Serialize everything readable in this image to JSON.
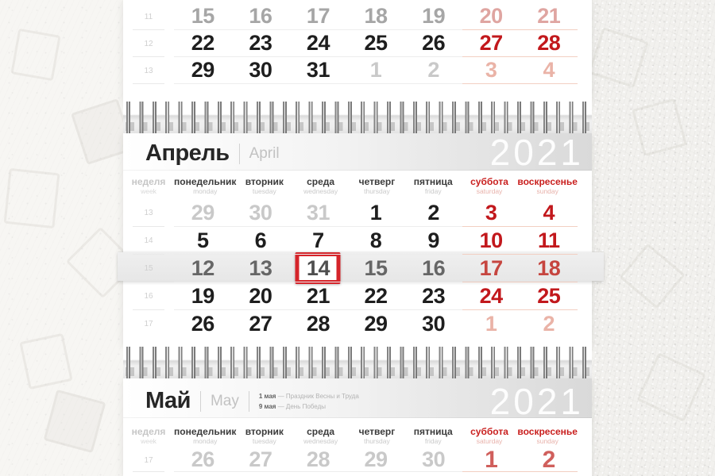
{
  "weekdays": [
    {
      "ru": "неделя",
      "en": "week",
      "type": "week"
    },
    {
      "ru": "понедельник",
      "en": "monday",
      "type": "day"
    },
    {
      "ru": "вторник",
      "en": "tuesday",
      "type": "day"
    },
    {
      "ru": "среда",
      "en": "wednesday",
      "type": "day"
    },
    {
      "ru": "четверг",
      "en": "thursday",
      "type": "day"
    },
    {
      "ru": "пятница",
      "en": "friday",
      "type": "day"
    },
    {
      "ru": "суббота",
      "en": "saturday",
      "type": "weekend"
    },
    {
      "ru": "воскресенье",
      "en": "sunday",
      "type": "weekend"
    }
  ],
  "march": {
    "weeks": [
      {
        "num": "11",
        "days": [
          [
            "15",
            "fade"
          ],
          [
            "16",
            "fade"
          ],
          [
            "17",
            "fade"
          ],
          [
            "18",
            "fade"
          ],
          [
            "19",
            "fade"
          ],
          [
            "20",
            "fade-weekend"
          ],
          [
            "21",
            "fade-weekend"
          ]
        ]
      },
      {
        "num": "12",
        "days": [
          [
            "22",
            "month"
          ],
          [
            "23",
            "month"
          ],
          [
            "24",
            "month"
          ],
          [
            "25",
            "month"
          ],
          [
            "26",
            "month"
          ],
          [
            "27",
            "weekend"
          ],
          [
            "28",
            "weekend"
          ]
        ]
      },
      {
        "num": "13",
        "days": [
          [
            "29",
            "month"
          ],
          [
            "30",
            "month"
          ],
          [
            "31",
            "month"
          ],
          [
            "1",
            "other"
          ],
          [
            "2",
            "other"
          ],
          [
            "3",
            "other-weekend"
          ],
          [
            "4",
            "other-weekend"
          ]
        ]
      }
    ]
  },
  "april": {
    "title_ru": "Апрель",
    "title_en": "April",
    "year": "2021",
    "weeks": [
      {
        "num": "13",
        "days": [
          [
            "29",
            "other"
          ],
          [
            "30",
            "other"
          ],
          [
            "31",
            "other"
          ],
          [
            "1",
            "month"
          ],
          [
            "2",
            "month"
          ],
          [
            "3",
            "weekend"
          ],
          [
            "4",
            "weekend"
          ]
        ]
      },
      {
        "num": "14",
        "days": [
          [
            "5",
            "month"
          ],
          [
            "6",
            "month"
          ],
          [
            "7",
            "month"
          ],
          [
            "8",
            "month"
          ],
          [
            "9",
            "month"
          ],
          [
            "10",
            "weekend"
          ],
          [
            "11",
            "weekend"
          ]
        ]
      },
      {
        "num": "15",
        "current": true,
        "days": [
          [
            "12",
            "cw"
          ],
          [
            "13",
            "cw"
          ],
          [
            "14",
            "today"
          ],
          [
            "15",
            "cw"
          ],
          [
            "16",
            "cw"
          ],
          [
            "17",
            "cw-weekend"
          ],
          [
            "18",
            "cw-weekend"
          ]
        ]
      },
      {
        "num": "16",
        "days": [
          [
            "19",
            "month"
          ],
          [
            "20",
            "month"
          ],
          [
            "21",
            "month"
          ],
          [
            "22",
            "month"
          ],
          [
            "23",
            "month"
          ],
          [
            "24",
            "weekend"
          ],
          [
            "25",
            "weekend"
          ]
        ]
      },
      {
        "num": "17",
        "divider": false,
        "days": [
          [
            "26",
            "month"
          ],
          [
            "27",
            "month"
          ],
          [
            "28",
            "month"
          ],
          [
            "29",
            "month"
          ],
          [
            "30",
            "month"
          ],
          [
            "1",
            "other-weekend"
          ],
          [
            "2",
            "other-weekend"
          ]
        ]
      }
    ]
  },
  "may": {
    "title_ru": "Май",
    "title_en": "May",
    "year": "2021",
    "holidays": [
      {
        "date": "1 мая",
        "name": "Праздник Весны и Труда"
      },
      {
        "date": "9 мая",
        "name": "День Победы"
      }
    ],
    "weeks": [
      {
        "num": "17",
        "days": [
          [
            "26",
            "other"
          ],
          [
            "27",
            "other"
          ],
          [
            "28",
            "other"
          ],
          [
            "29",
            "other"
          ],
          [
            "30",
            "other"
          ],
          [
            "1",
            "next-weekend"
          ],
          [
            "2",
            "next-weekend"
          ]
        ]
      }
    ]
  },
  "today_date": "14"
}
